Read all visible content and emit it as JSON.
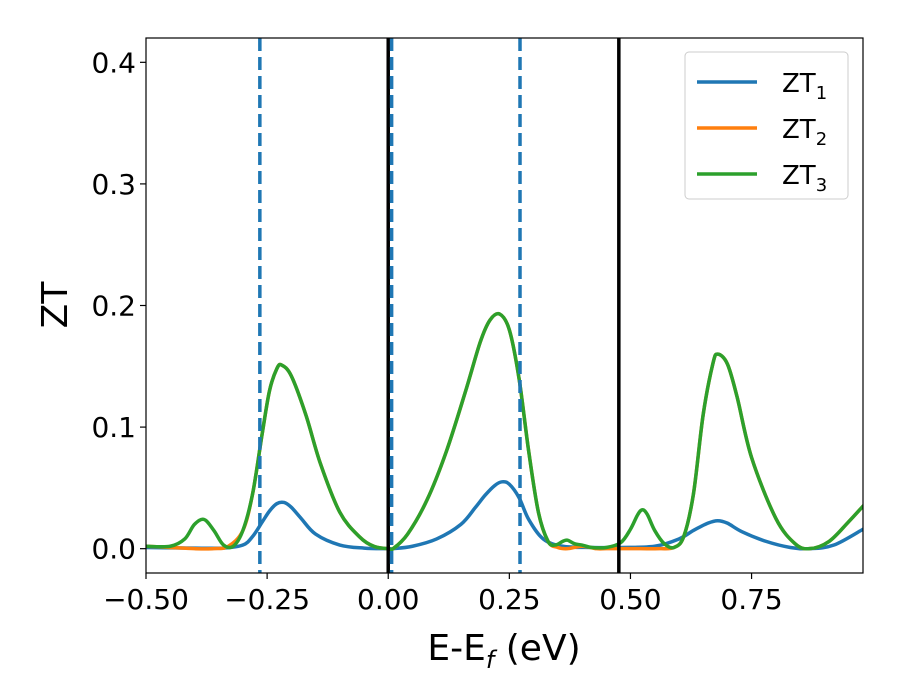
{
  "chart_data": {
    "type": "line",
    "xlabel": "E-E",
    "xlabel_sub": "f",
    "xlabel_unit": " (eV)",
    "ylabel": "ZT",
    "xlim": [
      -0.5,
      0.98
    ],
    "ylim": [
      -0.02,
      0.42
    ],
    "xticks": [
      -0.5,
      -0.25,
      0.0,
      0.25,
      0.5,
      0.75
    ],
    "xtick_labels": [
      "−0.50",
      "−0.25",
      "0.00",
      "0.25",
      "0.50",
      "0.75"
    ],
    "yticks": [
      0.0,
      0.1,
      0.2,
      0.3,
      0.4
    ],
    "ytick_labels": [
      "0.0",
      "0.1",
      "0.2",
      "0.3",
      "0.4"
    ],
    "legend_position": "top-right",
    "series": [
      {
        "name": "ZT",
        "sub": "1",
        "color": "#1f77b4",
        "x": [
          -0.5,
          -0.4,
          -0.34,
          -0.3,
          -0.28,
          -0.26,
          -0.245,
          -0.23,
          -0.215,
          -0.2,
          -0.18,
          -0.15,
          -0.1,
          -0.05,
          0.0,
          0.01,
          0.05,
          0.1,
          0.15,
          0.18,
          0.2,
          0.22,
          0.235,
          0.25,
          0.27,
          0.29,
          0.32,
          0.36,
          0.42,
          0.48,
          0.55,
          0.6,
          0.63,
          0.66,
          0.68,
          0.7,
          0.73,
          0.78,
          0.83,
          0.87,
          0.92,
          0.98
        ],
        "y": [
          0.001,
          0.0005,
          0.0005,
          0.003,
          0.01,
          0.022,
          0.031,
          0.037,
          0.038,
          0.034,
          0.025,
          0.012,
          0.003,
          0.0005,
          0.0,
          0.0,
          0.002,
          0.008,
          0.02,
          0.034,
          0.044,
          0.052,
          0.055,
          0.053,
          0.042,
          0.024,
          0.008,
          0.002,
          0.001,
          0.001,
          0.002,
          0.008,
          0.015,
          0.021,
          0.023,
          0.021,
          0.014,
          0.006,
          0.001,
          0.0,
          0.003,
          0.016
        ]
      },
      {
        "name": "ZT",
        "sub": "2",
        "color": "#ff7f0e",
        "x": [
          -0.5,
          -0.45,
          -0.4,
          -0.36,
          -0.33,
          -0.3,
          -0.28,
          -0.26,
          -0.245,
          -0.23,
          -0.22,
          -0.2,
          -0.17,
          -0.14,
          -0.1,
          -0.06,
          -0.03,
          0.0,
          0.01,
          0.04,
          0.08,
          0.12,
          0.16,
          0.19,
          0.21,
          0.23,
          0.25,
          0.27,
          0.29,
          0.31,
          0.33,
          0.35,
          0.37,
          0.4,
          0.43,
          0.45,
          0.48,
          0.52,
          0.56,
          0.59,
          0.61,
          0.63,
          0.65,
          0.67,
          0.68,
          0.7,
          0.72,
          0.75,
          0.8,
          0.84,
          0.87,
          0.91,
          0.95,
          0.98
        ],
        "y": [
          0.002,
          0.001,
          0.0,
          0.0,
          0.002,
          0.015,
          0.045,
          0.095,
          0.13,
          0.148,
          0.151,
          0.142,
          0.11,
          0.07,
          0.03,
          0.01,
          0.002,
          0.0,
          0.0,
          0.012,
          0.04,
          0.08,
          0.13,
          0.17,
          0.188,
          0.193,
          0.18,
          0.14,
          0.08,
          0.03,
          0.006,
          0.001,
          0.0,
          0.002,
          0.0,
          0.0,
          0.0,
          0.0,
          0.0,
          0.001,
          0.01,
          0.045,
          0.11,
          0.152,
          0.16,
          0.152,
          0.125,
          0.075,
          0.025,
          0.004,
          0.0,
          0.006,
          0.022,
          0.035
        ]
      },
      {
        "name": "ZT",
        "sub": "3",
        "color": "#2ca02c",
        "x": [
          -0.5,
          -0.45,
          -0.42,
          -0.4,
          -0.38,
          -0.36,
          -0.34,
          -0.32,
          -0.3,
          -0.28,
          -0.26,
          -0.245,
          -0.23,
          -0.22,
          -0.2,
          -0.17,
          -0.14,
          -0.1,
          -0.06,
          -0.03,
          0.0,
          0.01,
          0.04,
          0.08,
          0.12,
          0.16,
          0.19,
          0.21,
          0.23,
          0.25,
          0.27,
          0.29,
          0.31,
          0.33,
          0.345,
          0.36,
          0.37,
          0.385,
          0.4,
          0.42,
          0.45,
          0.48,
          0.5,
          0.515,
          0.525,
          0.535,
          0.55,
          0.57,
          0.59,
          0.61,
          0.63,
          0.65,
          0.67,
          0.68,
          0.7,
          0.72,
          0.75,
          0.8,
          0.84,
          0.87,
          0.91,
          0.95,
          0.98
        ],
        "y": [
          0.002,
          0.002,
          0.008,
          0.02,
          0.024,
          0.015,
          0.003,
          0.002,
          0.015,
          0.045,
          0.095,
          0.13,
          0.148,
          0.151,
          0.142,
          0.11,
          0.07,
          0.03,
          0.01,
          0.002,
          0.0,
          0.0,
          0.012,
          0.04,
          0.08,
          0.13,
          0.17,
          0.188,
          0.193,
          0.18,
          0.14,
          0.08,
          0.03,
          0.006,
          0.003,
          0.006,
          0.007,
          0.004,
          0.003,
          0.001,
          0.001,
          0.005,
          0.016,
          0.028,
          0.032,
          0.028,
          0.015,
          0.004,
          0.001,
          0.01,
          0.045,
          0.11,
          0.152,
          0.16,
          0.152,
          0.125,
          0.075,
          0.025,
          0.004,
          0.0,
          0.006,
          0.022,
          0.035
        ]
      }
    ],
    "vlines_dashed": {
      "color": "#1f77b4",
      "x": [
        -0.265,
        0.007,
        0.272
      ]
    },
    "vlines_solid": {
      "color": "#000000",
      "x": [
        0.0,
        0.476
      ]
    }
  }
}
